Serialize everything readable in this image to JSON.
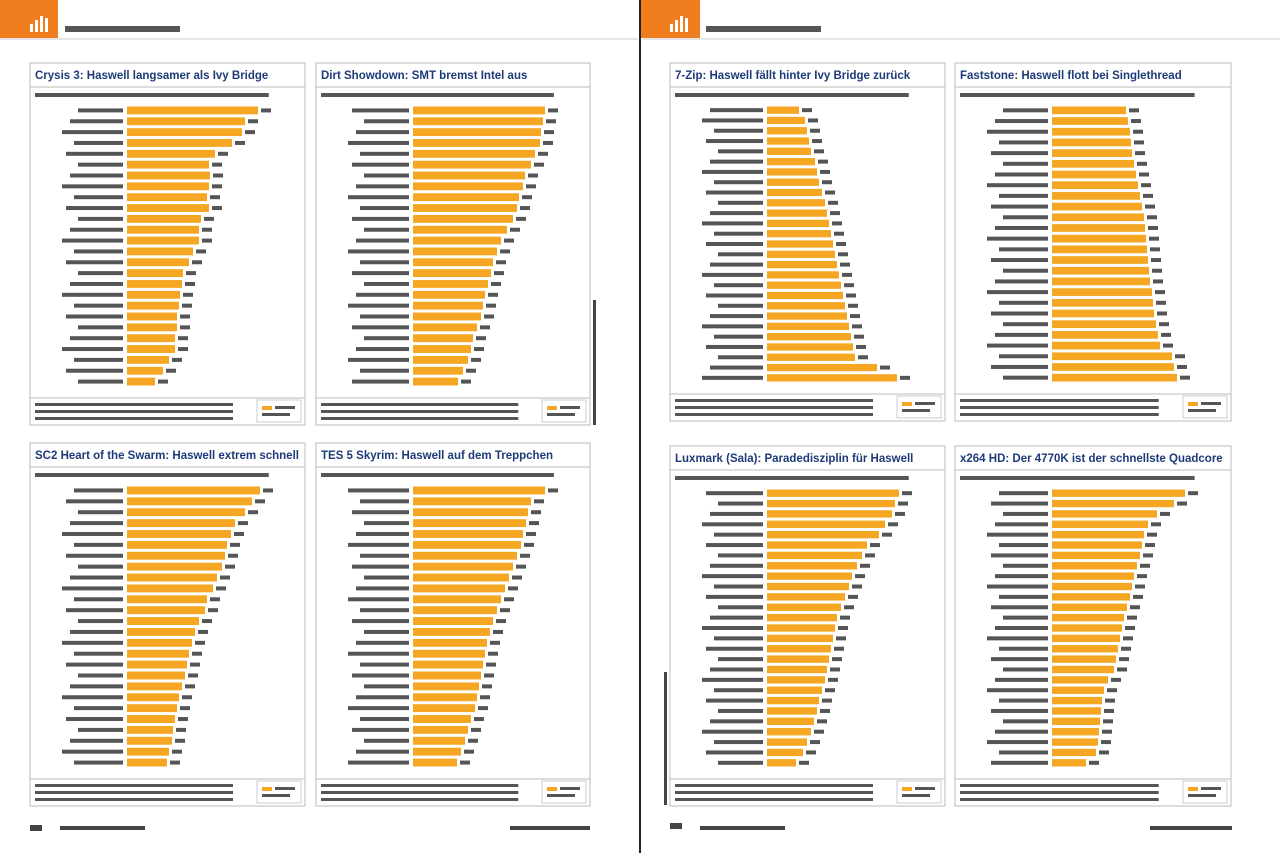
{
  "bar_color": "#f5a623",
  "charts": [
    {
      "title": "Crysis 3: Haswell langsamer als Ivy Bridge",
      "values": [
        131,
        118,
        115,
        105,
        88,
        82,
        83,
        82,
        80,
        82,
        74,
        72,
        72,
        66,
        62,
        56,
        55,
        53,
        52,
        50,
        50,
        48,
        48,
        42,
        36,
        28
      ]
    },
    {
      "title": "Dirt Showdown: SMT bremst Intel aus",
      "values": [
        132,
        130,
        128,
        127,
        122,
        118,
        112,
        110,
        106,
        104,
        100,
        94,
        88,
        84,
        80,
        78,
        75,
        72,
        70,
        68,
        64,
        60,
        58,
        55,
        50,
        45
      ]
    },
    {
      "title": "SC2 Heart of the Swarm: Haswell extrem schnell",
      "values": [
        133,
        125,
        118,
        108,
        104,
        100,
        98,
        95,
        90,
        86,
        80,
        78,
        72,
        68,
        65,
        62,
        60,
        58,
        55,
        52,
        50,
        48,
        46,
        45,
        42,
        40
      ]
    },
    {
      "title": "TES 5 Skyrim: Haswell auf dem Treppchen",
      "values": [
        132,
        118,
        115,
        113,
        110,
        108,
        104,
        100,
        96,
        92,
        88,
        84,
        80,
        77,
        74,
        72,
        70,
        68,
        66,
        64,
        62,
        58,
        55,
        52,
        48,
        44
      ]
    },
    {
      "title": "7-Zip: Haswell fällt hinter Ivy Bridge zurück",
      "values": [
        32,
        38,
        40,
        42,
        44,
        48,
        50,
        52,
        55,
        58,
        60,
        62,
        64,
        66,
        68,
        70,
        72,
        74,
        76,
        78,
        80,
        82,
        84,
        86,
        88,
        110,
        130
      ]
    },
    {
      "title": "Faststone: Haswell flott bei Singlethread",
      "values": [
        74,
        76,
        78,
        79,
        80,
        82,
        84,
        86,
        88,
        90,
        92,
        93,
        94,
        95,
        96,
        97,
        98,
        100,
        101,
        102,
        104,
        106,
        108,
        120,
        122,
        125
      ]
    },
    {
      "title": "Luxmark (Sala): Paradedisziplin für Haswell",
      "values": [
        132,
        128,
        125,
        118,
        112,
        100,
        95,
        90,
        85,
        82,
        78,
        74,
        70,
        68,
        66,
        64,
        62,
        60,
        58,
        55,
        52,
        50,
        47,
        44,
        40,
        36,
        29
      ]
    },
    {
      "title": "x264 HD: Der 4770K ist der schnellste Quadcore",
      "values": [
        133,
        122,
        105,
        96,
        92,
        90,
        88,
        85,
        82,
        80,
        78,
        75,
        72,
        70,
        68,
        66,
        64,
        62,
        56,
        52,
        50,
        49,
        48,
        47,
        46,
        44,
        34
      ]
    }
  ]
}
